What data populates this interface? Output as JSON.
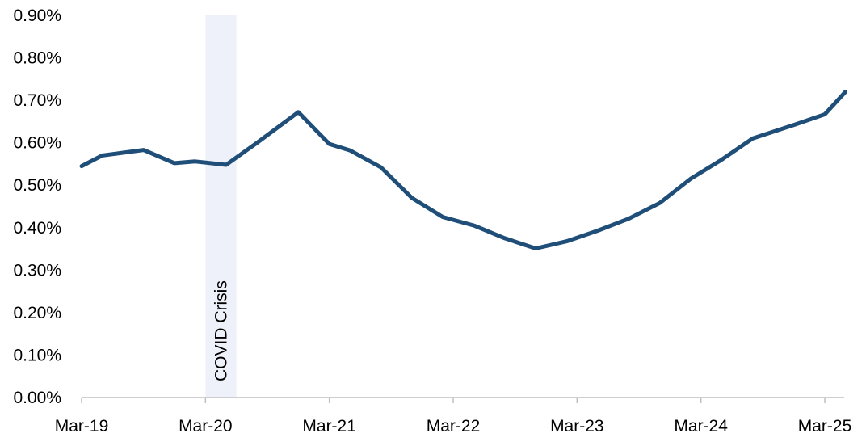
{
  "chart_data": {
    "type": "line",
    "title": "",
    "xlabel": "",
    "ylabel": "",
    "ylim": [
      0,
      0.9
    ],
    "y_ticks": [
      0,
      0.1,
      0.2,
      0.3,
      0.4,
      0.5,
      0.6,
      0.7,
      0.8,
      0.9
    ],
    "y_tick_labels": [
      "0.00%",
      "0.10%",
      "0.20%",
      "0.30%",
      "0.40%",
      "0.50%",
      "0.60%",
      "0.70%",
      "0.80%",
      "0.90%"
    ],
    "x_ticks": [
      "2019-03",
      "2020-03",
      "2021-03",
      "2022-03",
      "2023-03",
      "2024-03",
      "2025-03"
    ],
    "x_tick_labels": [
      "Mar-19",
      "Mar-20",
      "Mar-21",
      "Mar-22",
      "Mar-23",
      "Mar-24",
      "Mar-25"
    ],
    "xlim": [
      "2019-03",
      "2025-05"
    ],
    "grid": false,
    "legend": "none",
    "colors": {
      "line": "#1f4e79",
      "shade": "#eef1f9",
      "axis": "#bfbfbf"
    },
    "annotations": [
      {
        "label": "COVID Crisis",
        "start": "2020-03",
        "end": "2020-06"
      }
    ],
    "series": [
      {
        "x": [
          "2019-03",
          "2019-05",
          "2019-09",
          "2019-12",
          "2020-02",
          "2020-05",
          "2020-08",
          "2020-12",
          "2021-03",
          "2021-05",
          "2021-08",
          "2021-11",
          "2022-02",
          "2022-05",
          "2022-08",
          "2022-11",
          "2023-02",
          "2023-05",
          "2023-08",
          "2023-11",
          "2024-02",
          "2024-05",
          "2024-08",
          "2024-12",
          "2025-03",
          "2025-05"
        ],
        "values": [
          0.545,
          0.57,
          0.583,
          0.552,
          0.556,
          0.548,
          0.6,
          0.672,
          0.597,
          0.582,
          0.542,
          0.47,
          0.425,
          0.405,
          0.375,
          0.351,
          0.368,
          0.393,
          0.421,
          0.458,
          0.515,
          0.56,
          0.61,
          0.642,
          0.667,
          0.72
        ]
      }
    ]
  }
}
